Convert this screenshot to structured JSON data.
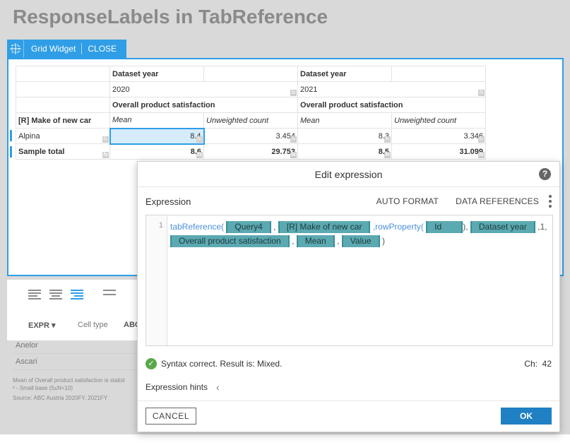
{
  "page": {
    "title": "ResponseLabels in TabReference"
  },
  "widget": {
    "tab_label": "Grid Widget",
    "close_label": "CLOSE"
  },
  "grid": {
    "header_rows": [
      [
        "",
        "Dataset year",
        "",
        "Dataset year",
        ""
      ],
      [
        "",
        "2020",
        "",
        "2021",
        ""
      ],
      [
        "",
        "Overall product satisfaction",
        "",
        "Overall product satisfaction",
        ""
      ],
      [
        "[R] Make of new car",
        "Mean",
        "Unweighted count",
        "Mean",
        "Unweighted count"
      ]
    ],
    "rows": [
      {
        "label": "Alpina",
        "values": [
          "8.4",
          "3.454",
          "8.3",
          "3.346"
        ]
      },
      {
        "label": "Sample total",
        "values": [
          "8.6",
          "29.753",
          "8.5",
          "31.099"
        ]
      }
    ],
    "fx_label": "fx"
  },
  "toolbar": {
    "expr_label": "EXPR",
    "cell_type_label": "Cell type",
    "abc_label": "ABC"
  },
  "background_rows": [
    "Anelor",
    "Ascari"
  ],
  "background_notes": [
    "Mean of Overall product satisfaction is statist",
    "² - Small base (5≤N<10)",
    "Source: ABC Austria 2020FY, 2021FY"
  ],
  "dialog": {
    "title": "Edit expression",
    "expression_label": "Expression",
    "auto_format": "AUTO FORMAT",
    "data_references": "DATA REFERENCES",
    "line_number": "1",
    "code": {
      "fn1": "tabReference(",
      "tok_query": "Query4",
      "tok_make": "[R] Make of new car",
      "fn2": ",rowProperty(",
      "tok_id": "Id",
      "tok_year": "Dataset year",
      "num": ",1,",
      "tok_ops": "Overall product satisfaction",
      "tok_mean": "Mean",
      "tok_value": "Value"
    },
    "status": "Syntax correct. Result is: Mixed.",
    "ch_label": "Ch:",
    "ch_value": "42",
    "hints_label": "Expression hints",
    "cancel": "CANCEL",
    "ok": "OK"
  }
}
